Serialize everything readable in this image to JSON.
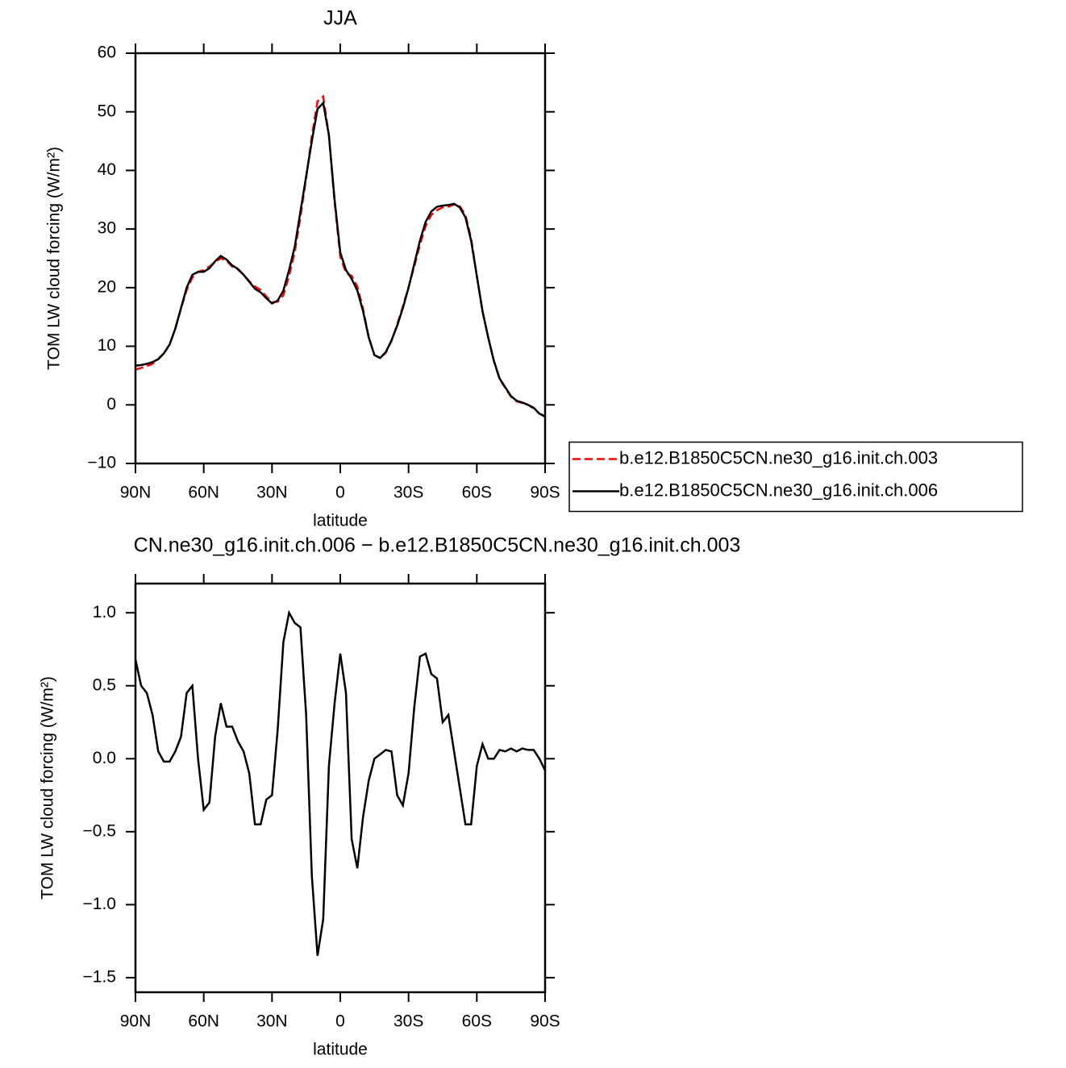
{
  "chart_data": [
    {
      "type": "line",
      "title": "JJA",
      "xlabel": "latitude",
      "ylabel": "TOM LW cloud forcing (W/m²)",
      "x": [
        90,
        87.5,
        85,
        82.5,
        80,
        77.5,
        75,
        72.5,
        70,
        67.5,
        65,
        62.5,
        60,
        57.5,
        55,
        52.5,
        50,
        47.5,
        45,
        42.5,
        40,
        37.5,
        35,
        32.5,
        30,
        27.5,
        25,
        22.5,
        20,
        17.5,
        15,
        12.5,
        10,
        7.5,
        5,
        2.5,
        0,
        -2.5,
        -5,
        -7.5,
        -10,
        -12.5,
        -15,
        -17.5,
        -20,
        -22.5,
        -25,
        -27.5,
        -30,
        -32.5,
        -35,
        -37.5,
        -40,
        -42.5,
        -45,
        -47.5,
        -50,
        -52.5,
        -55,
        -57.5,
        -60,
        -62.5,
        -65,
        -67.5,
        -70,
        -72.5,
        -75,
        -77.5,
        -80,
        -82.5,
        -85,
        -87.5,
        -90
      ],
      "series": [
        {
          "name": "b.e12.B1850C5CN.ne30_g16.init.ch.003",
          "color": "#ff0000",
          "style": "dashed",
          "values": [
            6.0,
            6.3,
            6.6,
            7.0,
            7.8,
            8.8,
            10.3,
            13.0,
            16.4,
            19.6,
            21.7,
            22.7,
            23.0,
            23.6,
            24.4,
            25.0,
            24.6,
            23.6,
            23.1,
            22.2,
            21.1,
            20.2,
            19.6,
            18.5,
            17.5,
            17.6,
            18.7,
            22.0,
            26.1,
            32.1,
            38.7,
            45.8,
            51.8,
            52.6,
            46.0,
            34.6,
            25.3,
            22.5,
            22.0,
            20.2,
            16.4,
            11.6,
            8.5,
            8.0,
            8.9,
            10.9,
            13.7,
            16.8,
            20.1,
            23.6,
            27.3,
            30.5,
            32.4,
            33.2,
            33.7,
            33.8,
            34.2,
            33.9,
            32.4,
            28.4,
            22.0,
            15.9,
            11.5,
            7.5,
            4.4,
            2.9,
            1.4,
            0.6,
            0.3,
            0.0,
            -0.6,
            -1.5,
            -1.9
          ]
        },
        {
          "name": "b.e12.B1850C5CN.ne30_g16.init.ch.006",
          "color": "#000000",
          "style": "solid",
          "values": [
            6.7,
            6.8,
            7.0,
            7.3,
            7.8,
            8.8,
            10.3,
            13.0,
            16.5,
            20.0,
            22.2,
            22.7,
            22.7,
            23.3,
            24.5,
            25.4,
            24.8,
            23.8,
            23.2,
            22.2,
            21.0,
            19.8,
            19.2,
            18.2,
            17.3,
            17.8,
            19.5,
            23.0,
            27.0,
            33.0,
            39.0,
            45.0,
            50.5,
            51.5,
            46.0,
            35.0,
            26.0,
            23.0,
            21.5,
            19.5,
            16.0,
            11.5,
            8.5,
            8.0,
            9.0,
            11.0,
            13.5,
            16.5,
            20.0,
            24.0,
            28.0,
            31.2,
            33.0,
            33.8,
            34.0,
            34.1,
            34.3,
            33.7,
            32.0,
            28.0,
            22.0,
            16.0,
            11.5,
            7.5,
            4.5,
            3.0,
            1.5,
            0.7,
            0.4,
            0.0,
            -0.5,
            -1.5,
            -2.0
          ]
        }
      ],
      "xlim": [
        90,
        -90
      ],
      "xticks": [
        {
          "value": 90,
          "label": "90N"
        },
        {
          "value": 60,
          "label": "60N"
        },
        {
          "value": 30,
          "label": "30N"
        },
        0,
        {
          "value": -30,
          "label": "30S"
        },
        {
          "value": -60,
          "label": "60S"
        },
        {
          "value": -90,
          "label": "90S"
        }
      ],
      "ylim": [
        -10,
        60
      ],
      "yticks": [
        {
          "value": -10,
          "label": "−10"
        },
        0,
        10,
        20,
        30,
        40,
        50,
        60
      ],
      "legend": "right"
    },
    {
      "type": "line",
      "title": "CN.ne30_g16.init.ch.006 − b.e12.B1850C5CN.ne30_g16.init.ch.003",
      "xlabel": "latitude",
      "ylabel": "TOM LW cloud forcing (W/m²)",
      "x": [
        90,
        87.5,
        85,
        82.5,
        80,
        77.5,
        75,
        72.5,
        70,
        67.5,
        65,
        62.5,
        60,
        57.5,
        55,
        52.5,
        50,
        47.5,
        45,
        42.5,
        40,
        37.5,
        35,
        32.5,
        30,
        27.5,
        25,
        22.5,
        20,
        17.5,
        15,
        12.5,
        10,
        7.5,
        5,
        2.5,
        0,
        -2.5,
        -5,
        -7.5,
        -10,
        -12.5,
        -15,
        -17.5,
        -20,
        -22.5,
        -25,
        -27.5,
        -30,
        -32.5,
        -35,
        -37.5,
        -40,
        -42.5,
        -45,
        -47.5,
        -50,
        -52.5,
        -55,
        -57.5,
        -60,
        -62.5,
        -65,
        -67.5,
        -70,
        -72.5,
        -75,
        -77.5,
        -80,
        -82.5,
        -85,
        -87.5,
        -90
      ],
      "series": [
        {
          "color": "#000000",
          "style": "solid",
          "values": [
            0.68,
            0.5,
            0.45,
            0.3,
            0.05,
            -0.02,
            -0.02,
            0.05,
            0.15,
            0.45,
            0.5,
            0.0,
            -0.35,
            -0.3,
            0.15,
            0.38,
            0.22,
            0.22,
            0.12,
            0.05,
            -0.1,
            -0.45,
            -0.45,
            -0.28,
            -0.25,
            0.2,
            0.8,
            1.0,
            0.93,
            0.9,
            0.3,
            -0.8,
            -1.35,
            -1.1,
            -0.05,
            0.38,
            0.72,
            0.45,
            -0.55,
            -0.75,
            -0.4,
            -0.15,
            0.0,
            0.03,
            0.06,
            0.05,
            -0.25,
            -0.32,
            -0.1,
            0.35,
            0.7,
            0.72,
            0.58,
            0.55,
            0.25,
            0.3,
            0.05,
            -0.2,
            -0.45,
            -0.45,
            -0.05,
            0.1,
            0.0,
            0.0,
            0.06,
            0.05,
            0.07,
            0.05,
            0.07,
            0.06,
            0.06,
            0.0,
            -0.08
          ]
        }
      ],
      "xlim": [
        90,
        -90
      ],
      "xticks": [
        {
          "value": 90,
          "label": "90N"
        },
        {
          "value": 60,
          "label": "60N"
        },
        {
          "value": 30,
          "label": "30N"
        },
        0,
        {
          "value": -30,
          "label": "30S"
        },
        {
          "value": -60,
          "label": "60S"
        },
        {
          "value": -90,
          "label": "90S"
        }
      ],
      "ylim": [
        -1.6,
        1.2
      ],
      "yticks": [
        {
          "value": -1.5,
          "label": "−1.5"
        },
        {
          "value": -1.0,
          "label": "−1.0"
        },
        {
          "value": -0.5,
          "label": "−0.5"
        },
        {
          "value": 0,
          "label": "0.0"
        },
        {
          "value": 0.5,
          "label": "0.5"
        },
        {
          "value": 1.0,
          "label": "1.0"
        }
      ]
    }
  ]
}
